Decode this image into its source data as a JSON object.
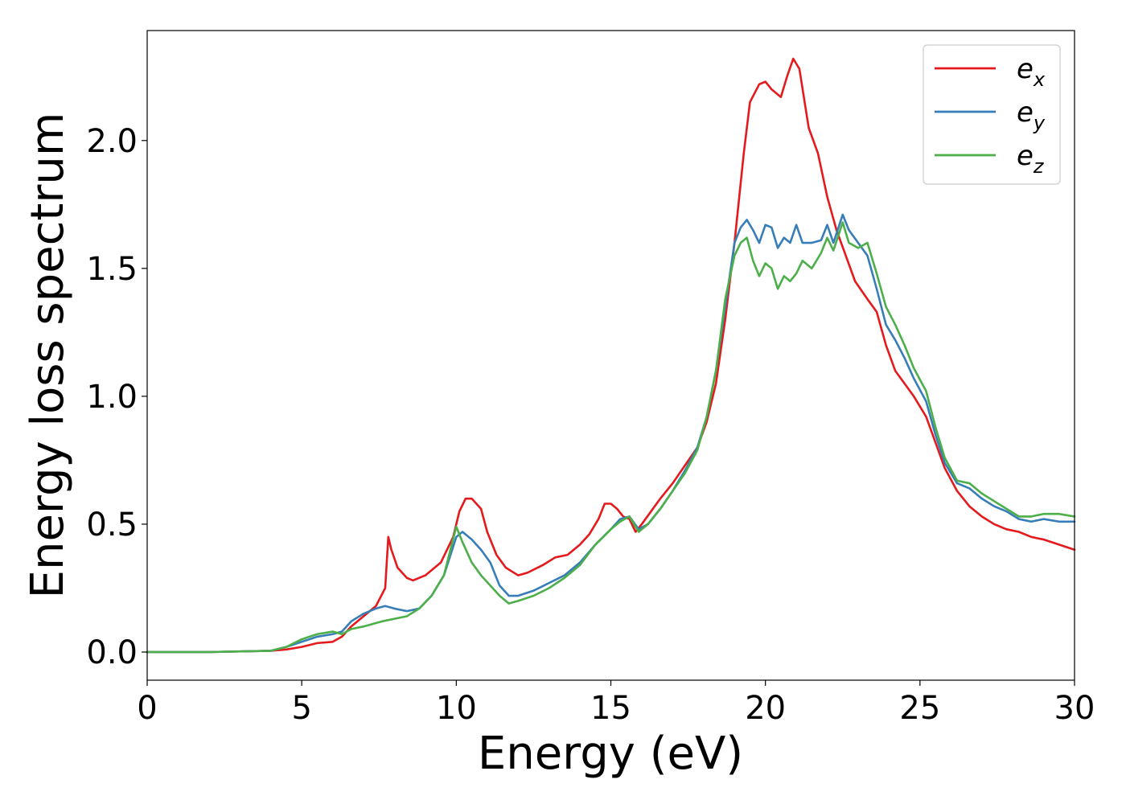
{
  "chart_data": {
    "type": "line",
    "title": "",
    "xlabel": "Energy (eV)",
    "ylabel": "Energy loss spectrum",
    "xlim": [
      0,
      30
    ],
    "ylim": [
      -0.11,
      2.43
    ],
    "xticks": [
      0,
      5,
      10,
      15,
      20,
      25,
      30
    ],
    "xtick_labels": [
      "0",
      "5",
      "10",
      "15",
      "20",
      "25",
      "30"
    ],
    "yticks": [
      0.0,
      0.5,
      1.0,
      1.5,
      2.0
    ],
    "ytick_labels": [
      "0.0",
      "0.5",
      "1.0",
      "1.5",
      "2.0"
    ],
    "grid": false,
    "legend_position": "top-right",
    "series": [
      {
        "name": "e",
        "subscript": "x",
        "color": "#e41a1c",
        "x": [
          0,
          2,
          4,
          4.5,
          5,
          5.5,
          6,
          6.3,
          6.6,
          7.0,
          7.4,
          7.7,
          7.8,
          7.9,
          8.1,
          8.4,
          8.6,
          9.0,
          9.5,
          9.9,
          10.1,
          10.3,
          10.5,
          10.8,
          11.0,
          11.3,
          11.6,
          12.0,
          12.3,
          12.8,
          13.2,
          13.6,
          14.0,
          14.3,
          14.6,
          14.8,
          15.0,
          15.2,
          15.4,
          15.6,
          15.8,
          16.0,
          16.3,
          16.6,
          17.0,
          17.4,
          17.8,
          18.1,
          18.4,
          18.7,
          19.0,
          19.3,
          19.5,
          19.8,
          20.0,
          20.2,
          20.5,
          20.7,
          20.9,
          21.1,
          21.4,
          21.7,
          22.0,
          22.3,
          22.6,
          22.9,
          23.3,
          23.6,
          23.9,
          24.2,
          24.5,
          24.8,
          25.2,
          25.5,
          25.8,
          26.2,
          26.6,
          27.0,
          27.4,
          27.8,
          28.2,
          28.6,
          29.0,
          29.5,
          30.0
        ],
        "values": [
          0,
          0,
          0.005,
          0.01,
          0.02,
          0.035,
          0.04,
          0.06,
          0.1,
          0.14,
          0.18,
          0.25,
          0.45,
          0.4,
          0.33,
          0.29,
          0.28,
          0.3,
          0.35,
          0.45,
          0.55,
          0.6,
          0.6,
          0.56,
          0.47,
          0.38,
          0.33,
          0.3,
          0.31,
          0.34,
          0.37,
          0.38,
          0.42,
          0.46,
          0.52,
          0.58,
          0.58,
          0.56,
          0.53,
          0.52,
          0.47,
          0.5,
          0.55,
          0.6,
          0.66,
          0.73,
          0.8,
          0.9,
          1.05,
          1.3,
          1.6,
          1.95,
          2.15,
          2.22,
          2.23,
          2.2,
          2.17,
          2.25,
          2.32,
          2.28,
          2.05,
          1.95,
          1.78,
          1.65,
          1.55,
          1.45,
          1.38,
          1.33,
          1.2,
          1.1,
          1.05,
          1.0,
          0.92,
          0.82,
          0.72,
          0.63,
          0.57,
          0.53,
          0.5,
          0.48,
          0.47,
          0.45,
          0.44,
          0.42,
          0.4
        ]
      },
      {
        "name": "e",
        "subscript": "y",
        "color": "#377eb8",
        "x": [
          0,
          2,
          4,
          4.5,
          5,
          5.5,
          6,
          6.3,
          6.6,
          7.0,
          7.4,
          7.7,
          8.0,
          8.4,
          8.8,
          9.2,
          9.6,
          10.0,
          10.2,
          10.5,
          10.8,
          11.1,
          11.4,
          11.7,
          12.0,
          12.5,
          13.0,
          13.5,
          14.0,
          14.5,
          15.0,
          15.3,
          15.6,
          15.9,
          16.2,
          16.6,
          17.0,
          17.4,
          17.8,
          18.1,
          18.4,
          18.7,
          19.0,
          19.2,
          19.4,
          19.6,
          19.8,
          20.0,
          20.2,
          20.4,
          20.6,
          20.8,
          21.0,
          21.2,
          21.5,
          21.8,
          22.0,
          22.2,
          22.5,
          22.7,
          23.0,
          23.3,
          23.6,
          23.9,
          24.2,
          24.5,
          24.8,
          25.2,
          25.5,
          25.8,
          26.2,
          26.6,
          27.0,
          27.4,
          27.8,
          28.2,
          28.6,
          29.0,
          29.5,
          30.0
        ],
        "values": [
          0,
          0,
          0.005,
          0.02,
          0.04,
          0.06,
          0.07,
          0.08,
          0.12,
          0.15,
          0.17,
          0.18,
          0.17,
          0.16,
          0.17,
          0.22,
          0.3,
          0.45,
          0.47,
          0.44,
          0.4,
          0.35,
          0.26,
          0.22,
          0.22,
          0.24,
          0.27,
          0.3,
          0.35,
          0.42,
          0.48,
          0.52,
          0.53,
          0.48,
          0.5,
          0.56,
          0.63,
          0.71,
          0.8,
          0.92,
          1.1,
          1.35,
          1.6,
          1.66,
          1.69,
          1.65,
          1.6,
          1.67,
          1.66,
          1.58,
          1.62,
          1.6,
          1.67,
          1.6,
          1.6,
          1.61,
          1.67,
          1.6,
          1.71,
          1.65,
          1.6,
          1.55,
          1.42,
          1.28,
          1.22,
          1.15,
          1.07,
          0.98,
          0.85,
          0.74,
          0.66,
          0.64,
          0.6,
          0.57,
          0.55,
          0.52,
          0.51,
          0.52,
          0.51,
          0.51
        ]
      },
      {
        "name": "e",
        "subscript": "z",
        "color": "#4daf4a",
        "x": [
          0,
          2,
          4,
          4.5,
          5,
          5.5,
          6,
          6.3,
          6.6,
          7.0,
          7.3,
          7.6,
          8.0,
          8.4,
          8.8,
          9.2,
          9.6,
          10.0,
          10.2,
          10.5,
          10.8,
          11.1,
          11.4,
          11.7,
          12.0,
          12.5,
          13.0,
          13.5,
          14.0,
          14.5,
          15.0,
          15.3,
          15.6,
          15.9,
          16.2,
          16.6,
          17.0,
          17.4,
          17.8,
          18.1,
          18.4,
          18.7,
          19.0,
          19.2,
          19.4,
          19.6,
          19.8,
          20.0,
          20.2,
          20.4,
          20.6,
          20.8,
          21.0,
          21.2,
          21.5,
          21.8,
          22.0,
          22.2,
          22.5,
          22.7,
          23.0,
          23.3,
          23.6,
          23.9,
          24.2,
          24.5,
          24.8,
          25.2,
          25.5,
          25.8,
          26.2,
          26.6,
          27.0,
          27.4,
          27.8,
          28.2,
          28.6,
          29.0,
          29.5,
          30.0
        ],
        "values": [
          0,
          0,
          0.005,
          0.02,
          0.05,
          0.07,
          0.08,
          0.07,
          0.09,
          0.1,
          0.11,
          0.12,
          0.13,
          0.14,
          0.17,
          0.22,
          0.3,
          0.49,
          0.43,
          0.35,
          0.3,
          0.26,
          0.22,
          0.19,
          0.2,
          0.22,
          0.25,
          0.29,
          0.34,
          0.42,
          0.48,
          0.51,
          0.53,
          0.47,
          0.5,
          0.56,
          0.63,
          0.7,
          0.79,
          0.92,
          1.1,
          1.38,
          1.55,
          1.6,
          1.62,
          1.53,
          1.47,
          1.52,
          1.5,
          1.42,
          1.47,
          1.45,
          1.48,
          1.53,
          1.5,
          1.56,
          1.62,
          1.57,
          1.68,
          1.6,
          1.58,
          1.6,
          1.48,
          1.35,
          1.28,
          1.2,
          1.11,
          1.02,
          0.88,
          0.76,
          0.67,
          0.66,
          0.62,
          0.59,
          0.56,
          0.53,
          0.53,
          0.54,
          0.54,
          0.53
        ]
      }
    ]
  }
}
